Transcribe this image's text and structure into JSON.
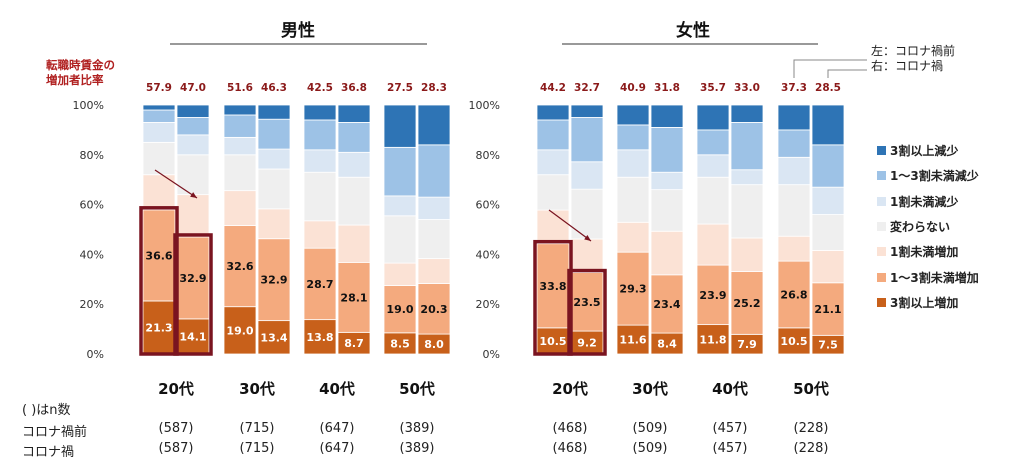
{
  "colors": {
    "seg": [
      "#c8601a",
      "#f4aa7e",
      "#fbe2d5",
      "#efefef",
      "#dae6f3",
      "#9dc2e6",
      "#2e74b5"
    ],
    "highlight": "#7a1420",
    "rate_text": "#8b1a1a",
    "axis_title": "#b02020"
  },
  "legend": {
    "items": [
      "3割以上減少",
      "1～3割未満減少",
      "1割未満減少",
      "変わらない",
      "1割未満増加",
      "1～3割未満増加",
      "3割以上増加"
    ]
  },
  "note": {
    "line1": "左：コロナ禍前",
    "line2": "右：コロナ禍"
  },
  "y_axis_title": {
    "line1": "転職時賃金の",
    "line2": "増加者比率"
  },
  "rows": {
    "n_label": "( )はn数",
    "before_label": "コロナ禍前",
    "after_label": "コロナ禍"
  },
  "chart_data": [
    {
      "type": "bar",
      "stacked": true,
      "title": "男性",
      "categories": [
        "20代",
        "30代",
        "40代",
        "50代"
      ],
      "bar_labels": [
        "コロナ禍前",
        "コロナ禍"
      ],
      "series_order": [
        "3割以上増加",
        "1～3割未満増加",
        "1割未満増加",
        "変わらない",
        "1割未満減少",
        "1～3割未満減少",
        "3割以上減少"
      ],
      "ylim": [
        0,
        100
      ],
      "yticks": [
        "0%",
        "20%",
        "40%",
        "60%",
        "80%",
        "100%"
      ],
      "bars": [
        [
          [
            21.3,
            36.6,
            14.1,
            13.0,
            8.0,
            5.0,
            2.0
          ],
          [
            14.1,
            32.9,
            17.0,
            16.0,
            8.0,
            7.0,
            5.0
          ]
        ],
        [
          [
            19.0,
            32.6,
            14.0,
            14.4,
            7.0,
            9.0,
            4.0
          ],
          [
            13.4,
            32.9,
            12.0,
            16.0,
            8.0,
            12.0,
            5.7
          ]
        ],
        [
          [
            13.8,
            28.7,
            11.0,
            19.5,
            9.0,
            12.0,
            6.0
          ],
          [
            8.7,
            28.1,
            15.0,
            19.2,
            10.0,
            12.0,
            7.0
          ]
        ],
        [
          [
            8.5,
            19.0,
            9.0,
            19.0,
            8.0,
            19.5,
            17.0
          ],
          [
            8.0,
            20.3,
            10.0,
            15.7,
            9.0,
            21.0,
            16.0
          ]
        ]
      ],
      "labeled_segments": [
        [
          [
            21.3,
            36.6
          ],
          [
            14.1,
            32.9
          ]
        ],
        [
          [
            19.0,
            32.6
          ],
          [
            13.4,
            32.9
          ]
        ],
        [
          [
            13.8,
            28.7
          ],
          [
            8.7,
            28.1
          ]
        ],
        [
          [
            8.5,
            19.0
          ],
          [
            8.0,
            20.3
          ]
        ]
      ],
      "increase_rate": [
        [
          57.9,
          47.0
        ],
        [
          51.6,
          46.3
        ],
        [
          42.5,
          36.8
        ],
        [
          27.5,
          28.3
        ]
      ],
      "n": [
        [
          587,
          587
        ],
        [
          715,
          715
        ],
        [
          647,
          647
        ],
        [
          389,
          389
        ]
      ],
      "highlighted_category": "20代"
    },
    {
      "type": "bar",
      "stacked": true,
      "title": "女性",
      "categories": [
        "20代",
        "30代",
        "40代",
        "50代"
      ],
      "bar_labels": [
        "コロナ禍前",
        "コロナ禍"
      ],
      "series_order": [
        "3割以上増加",
        "1～3割未満増加",
        "1割未満増加",
        "変わらない",
        "1割未満減少",
        "1～3割未満減少",
        "3割以上減少"
      ],
      "ylim": [
        0,
        100
      ],
      "yticks": [
        "0%",
        "20%",
        "40%",
        "60%",
        "80%",
        "100%"
      ],
      "bars": [
        [
          [
            10.5,
            33.8,
            13.5,
            14.2,
            10.0,
            12.0,
            6.0
          ],
          [
            9.2,
            23.5,
            13.5,
            20.0,
            11.0,
            17.8,
            5.0
          ]
        ],
        [
          [
            11.6,
            29.3,
            12.0,
            18.1,
            11.0,
            10.0,
            8.0
          ],
          [
            8.4,
            23.4,
            17.5,
            16.7,
            7.0,
            18.0,
            9.0
          ]
        ],
        [
          [
            11.8,
            23.9,
            16.5,
            18.8,
            9.0,
            10.0,
            10.0
          ],
          [
            7.9,
            25.2,
            13.5,
            21.4,
            6.0,
            19.0,
            7.0
          ]
        ],
        [
          [
            10.5,
            26.8,
            10.0,
            20.7,
            11.0,
            11.0,
            10.0
          ],
          [
            7.5,
            21.1,
            13.0,
            14.4,
            11.0,
            17.0,
            16.0
          ]
        ]
      ],
      "labeled_segments": [
        [
          [
            10.5,
            33.8
          ],
          [
            9.2,
            23.5
          ]
        ],
        [
          [
            11.6,
            29.3
          ],
          [
            8.4,
            23.4
          ]
        ],
        [
          [
            11.8,
            23.9
          ],
          [
            7.9,
            25.2
          ]
        ],
        [
          [
            10.5,
            26.8
          ],
          [
            7.5,
            21.1
          ]
        ]
      ],
      "increase_rate": [
        [
          44.2,
          32.7
        ],
        [
          40.9,
          31.8
        ],
        [
          35.7,
          33.0
        ],
        [
          37.3,
          28.5
        ]
      ],
      "n": [
        [
          468,
          468
        ],
        [
          509,
          509
        ],
        [
          457,
          457
        ],
        [
          228,
          228
        ]
      ],
      "highlighted_category": "20代"
    }
  ]
}
